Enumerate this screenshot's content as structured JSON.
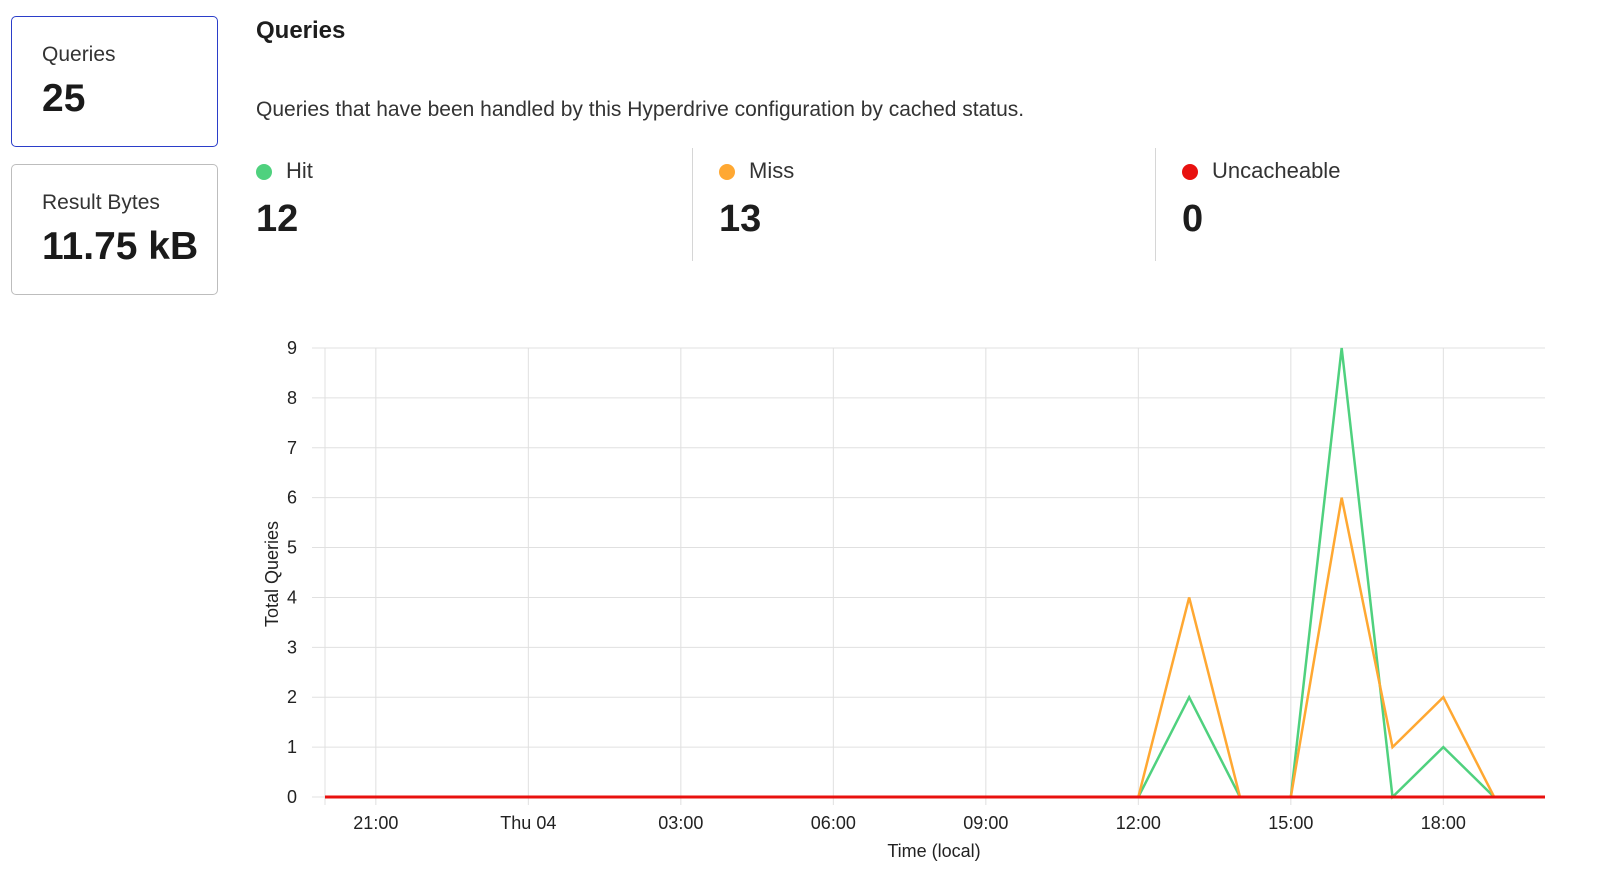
{
  "cards": [
    {
      "label": "Queries",
      "value": "25",
      "active": true
    },
    {
      "label": "Result Bytes",
      "value": "11.75 kB",
      "active": false
    }
  ],
  "section": {
    "title": "Queries",
    "description": "Queries that have been handled by this Hyperdrive configuration by cached status."
  },
  "stats": [
    {
      "label": "Hit",
      "value": "12",
      "color": "#4fd17e"
    },
    {
      "label": "Miss",
      "value": "13",
      "color": "#ffa832"
    },
    {
      "label": "Uncacheable",
      "value": "0",
      "color": "#e8110f"
    }
  ],
  "chart_data": {
    "type": "line",
    "xlabel": "Time (local)",
    "ylabel": "Total Queries",
    "ylim": [
      0,
      9
    ],
    "yticks": [
      "0",
      "1",
      "2",
      "3",
      "4",
      "5",
      "6",
      "7",
      "8",
      "9"
    ],
    "xticks": [
      "21:00",
      "Thu 04",
      "03:00",
      "06:00",
      "09:00",
      "12:00",
      "15:00",
      "18:00"
    ],
    "grid": true,
    "x": [
      "Wed 20:00",
      "Wed 21:00",
      "Wed 22:00",
      "Wed 23:00",
      "Thu 00:00",
      "Thu 01:00",
      "Thu 02:00",
      "Thu 03:00",
      "Thu 04:00",
      "Thu 05:00",
      "Thu 06:00",
      "Thu 07:00",
      "Thu 08:00",
      "Thu 09:00",
      "Thu 10:00",
      "Thu 11:00",
      "Thu 12:00",
      "Thu 13:00",
      "Thu 14:00",
      "Thu 15:00",
      "Thu 16:00",
      "Thu 17:00",
      "Thu 18:00",
      "Thu 19:00",
      "Thu 20:00"
    ],
    "series": [
      {
        "name": "Hit",
        "color": "#4fd17e",
        "values": [
          0,
          0,
          0,
          0,
          0,
          0,
          0,
          0,
          0,
          0,
          0,
          0,
          0,
          0,
          0,
          0,
          0,
          2,
          0,
          0,
          9,
          0,
          1,
          0,
          0
        ]
      },
      {
        "name": "Miss",
        "color": "#ffa832",
        "values": [
          0,
          0,
          0,
          0,
          0,
          0,
          0,
          0,
          0,
          0,
          0,
          0,
          0,
          0,
          0,
          0,
          0,
          4,
          0,
          0,
          6,
          1,
          2,
          0,
          0
        ]
      },
      {
        "name": "Uncacheable",
        "color": "#e8110f",
        "values": [
          0,
          0,
          0,
          0,
          0,
          0,
          0,
          0,
          0,
          0,
          0,
          0,
          0,
          0,
          0,
          0,
          0,
          0,
          0,
          0,
          0,
          0,
          0,
          0,
          0
        ]
      }
    ]
  }
}
